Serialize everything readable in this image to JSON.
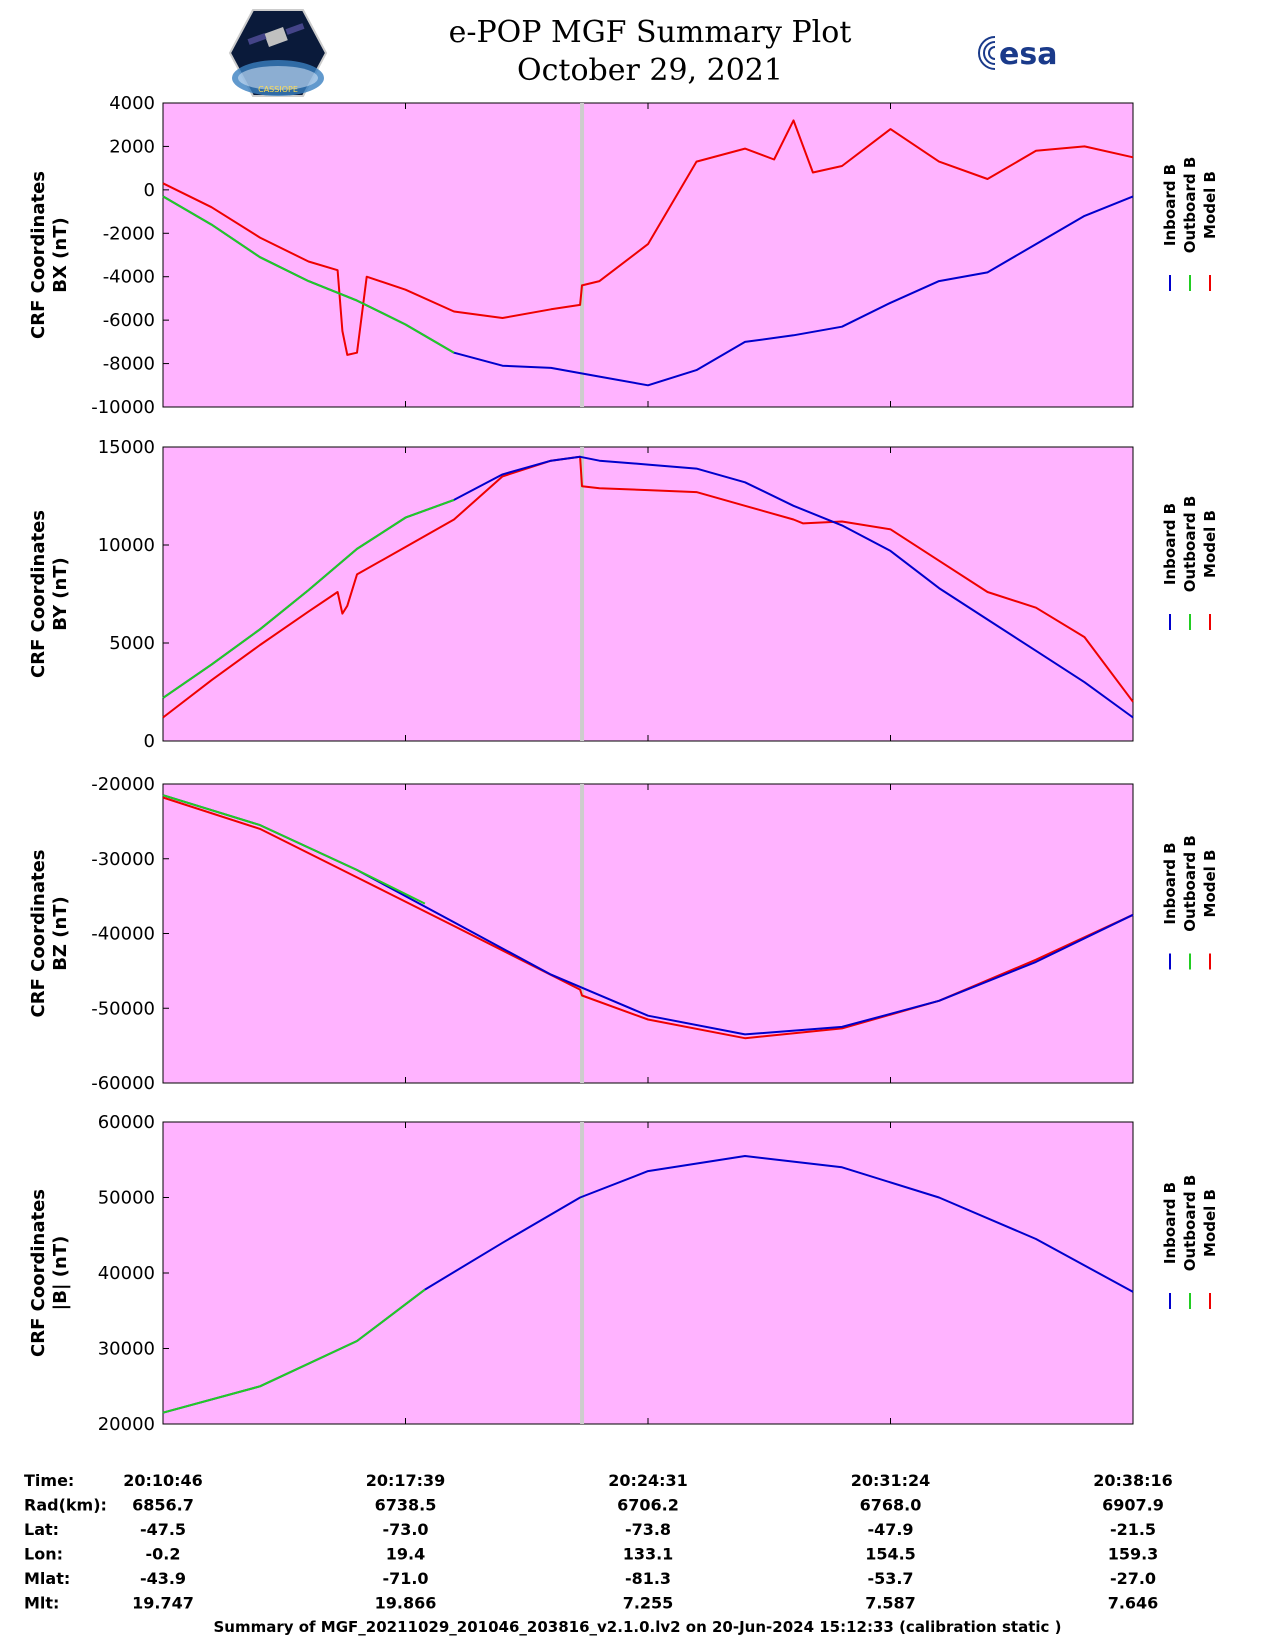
{
  "header": {
    "title_line1": "e-POP MGF Summary Plot",
    "title_line2": "October 29, 2021",
    "left_logo_text": "CASSIOPE",
    "right_logo_text": "esa"
  },
  "colors": {
    "plot_background": "#ffb3ff",
    "inboard": "#0000cc",
    "outboard": "#22cc22",
    "model": "#ee0000",
    "marker": "#cccccc"
  },
  "legend_labels": [
    "Inboard B",
    "Outboard B",
    "Model B"
  ],
  "chart_data": [
    {
      "type": "line",
      "ylabel": [
        "CRF Coordinates",
        "BX (nT)"
      ],
      "ylim": [
        -10000,
        4000
      ],
      "yticks": [
        4000,
        2000,
        0,
        -2000,
        -4000,
        -6000,
        -8000,
        -10000
      ],
      "series": [
        {
          "name": "Inboard B",
          "x": [
            0,
            0.05,
            0.1,
            0.15,
            0.2,
            0.25,
            0.3,
            0.35,
            0.4,
            0.45,
            0.5,
            0.55,
            0.6,
            0.65,
            0.7,
            0.75,
            0.8,
            0.85,
            0.9,
            0.95,
            1.0
          ],
          "values": [
            -300,
            -1600,
            -3100,
            -4200,
            -5100,
            -6200,
            -7500,
            -8100,
            -8200,
            -8600,
            -9000,
            -8300,
            -7000,
            -6700,
            -6300,
            -5200,
            -4200,
            -3800,
            -2500,
            -1200,
            -300
          ]
        },
        {
          "name": "Outboard B",
          "x": [
            0,
            0.05,
            0.1,
            0.15,
            0.2,
            0.25,
            0.3
          ],
          "values": [
            -300,
            -1600,
            -3100,
            -4200,
            -5100,
            -6200,
            -7500
          ]
        },
        {
          "name": "Model B",
          "x": [
            0,
            0.05,
            0.1,
            0.15,
            0.18,
            0.185,
            0.19,
            0.2,
            0.21,
            0.25,
            0.3,
            0.35,
            0.4,
            0.43,
            0.432,
            0.45,
            0.5,
            0.55,
            0.6,
            0.63,
            0.65,
            0.67,
            0.7,
            0.75,
            0.8,
            0.85,
            0.9,
            0.95,
            1.0
          ],
          "values": [
            300,
            -800,
            -2200,
            -3300,
            -3700,
            -6500,
            -7600,
            -7500,
            -4000,
            -4600,
            -5600,
            -5900,
            -5500,
            -5300,
            -4400,
            -4200,
            -2500,
            1300,
            1900,
            1400,
            3200,
            800,
            1100,
            2800,
            1300,
            500,
            1800,
            2000,
            1500
          ]
        }
      ]
    },
    {
      "type": "line",
      "ylabel": [
        "CRF Coordinates",
        "BY (nT)"
      ],
      "ylim": [
        0,
        15000
      ],
      "yticks": [
        15000,
        10000,
        5000,
        0
      ],
      "series": [
        {
          "name": "Inboard B",
          "x": [
            0,
            0.05,
            0.1,
            0.15,
            0.2,
            0.25,
            0.3,
            0.35,
            0.4,
            0.43,
            0.45,
            0.5,
            0.55,
            0.6,
            0.65,
            0.7,
            0.75,
            0.8,
            0.85,
            0.9,
            0.95,
            1.0
          ],
          "values": [
            2200,
            3900,
            5700,
            7700,
            9800,
            11400,
            12300,
            13600,
            14300,
            14500,
            14300,
            14100,
            13900,
            13200,
            12000,
            11000,
            9700,
            7800,
            6200,
            4600,
            3000,
            1200
          ]
        },
        {
          "name": "Outboard B",
          "x": [
            0,
            0.05,
            0.1,
            0.15,
            0.2,
            0.25,
            0.3
          ],
          "values": [
            2200,
            3900,
            5700,
            7700,
            9800,
            11400,
            12300
          ]
        },
        {
          "name": "Model B",
          "x": [
            0,
            0.05,
            0.1,
            0.15,
            0.18,
            0.185,
            0.19,
            0.2,
            0.25,
            0.3,
            0.35,
            0.4,
            0.43,
            0.432,
            0.45,
            0.5,
            0.55,
            0.6,
            0.65,
            0.66,
            0.7,
            0.75,
            0.8,
            0.85,
            0.9,
            0.95,
            1.0
          ],
          "values": [
            1200,
            3100,
            4900,
            6600,
            7600,
            6500,
            6900,
            8500,
            9900,
            11300,
            13500,
            14300,
            14500,
            13000,
            12900,
            12800,
            12700,
            12000,
            11300,
            11100,
            11200,
            10800,
            9200,
            7600,
            6800,
            5300,
            2000
          ]
        }
      ]
    },
    {
      "type": "line",
      "ylabel": [
        "CRF Coordinates",
        "BZ (nT)"
      ],
      "ylim": [
        -60000,
        -20000
      ],
      "yticks": [
        -20000,
        -30000,
        -40000,
        -50000,
        -60000
      ],
      "series": [
        {
          "name": "Inboard B",
          "x": [
            0,
            0.1,
            0.2,
            0.3,
            0.4,
            0.5,
            0.6,
            0.7,
            0.8,
            0.9,
            1.0
          ],
          "values": [
            -21500,
            -25500,
            -31500,
            -38500,
            -45500,
            -51000,
            -53500,
            -52500,
            -49000,
            -43800,
            -37500
          ]
        },
        {
          "name": "Outboard B",
          "x": [
            0,
            0.1,
            0.2,
            0.27
          ],
          "values": [
            -21500,
            -25500,
            -31500,
            -36000
          ]
        },
        {
          "name": "Model B",
          "x": [
            0,
            0.1,
            0.2,
            0.3,
            0.43,
            0.432,
            0.5,
            0.6,
            0.7,
            0.8,
            0.9,
            1.0
          ],
          "values": [
            -21800,
            -26000,
            -32500,
            -39000,
            -47500,
            -48300,
            -51500,
            -54000,
            -52700,
            -49000,
            -43500,
            -37500
          ]
        }
      ]
    },
    {
      "type": "line",
      "ylabel": [
        "CRF Coordinates",
        "|B| (nT)"
      ],
      "ylim": [
        20000,
        60000
      ],
      "yticks": [
        60000,
        50000,
        40000,
        30000,
        20000
      ],
      "series": [
        {
          "name": "Inboard B",
          "x": [
            0,
            0.1,
            0.2,
            0.27,
            0.35,
            0.43,
            0.5,
            0.6,
            0.7,
            0.8,
            0.9,
            1.0
          ],
          "values": [
            21500,
            25000,
            31000,
            37800,
            44000,
            50000,
            53500,
            55500,
            54000,
            50000,
            44500,
            37500
          ]
        },
        {
          "name": "Outboard B",
          "x": [
            0,
            0.1,
            0.2,
            0.27
          ],
          "values": [
            21500,
            25000,
            31000,
            37800
          ]
        },
        {
          "name": "Model B",
          "x": [],
          "values": []
        }
      ]
    }
  ],
  "marker_x": 0.432,
  "ephemeris": {
    "labels": [
      "Time:",
      "Rad(km):",
      "Lat:",
      "Lon:",
      "Mlat:",
      "Mlt:"
    ],
    "columns": [
      [
        "20:10:46",
        "6856.7",
        "-47.5",
        "-0.2",
        "-43.9",
        "19.747"
      ],
      [
        "20:17:39",
        "6738.5",
        "-73.0",
        "19.4",
        "-71.0",
        "19.866"
      ],
      [
        "20:24:31",
        "6706.2",
        "-73.8",
        "133.1",
        "-81.3",
        "7.255"
      ],
      [
        "20:31:24",
        "6768.0",
        "-47.9",
        "154.5",
        "-53.7",
        "7.587"
      ],
      [
        "20:38:16",
        "6907.9",
        "-21.5",
        "159.3",
        "-27.0",
        "7.646"
      ]
    ]
  },
  "footer": "Summary of MGF_20211029_201046_203816_v2.1.0.lv2 on 20-Jun-2024 15:12:33 (calibration static )"
}
